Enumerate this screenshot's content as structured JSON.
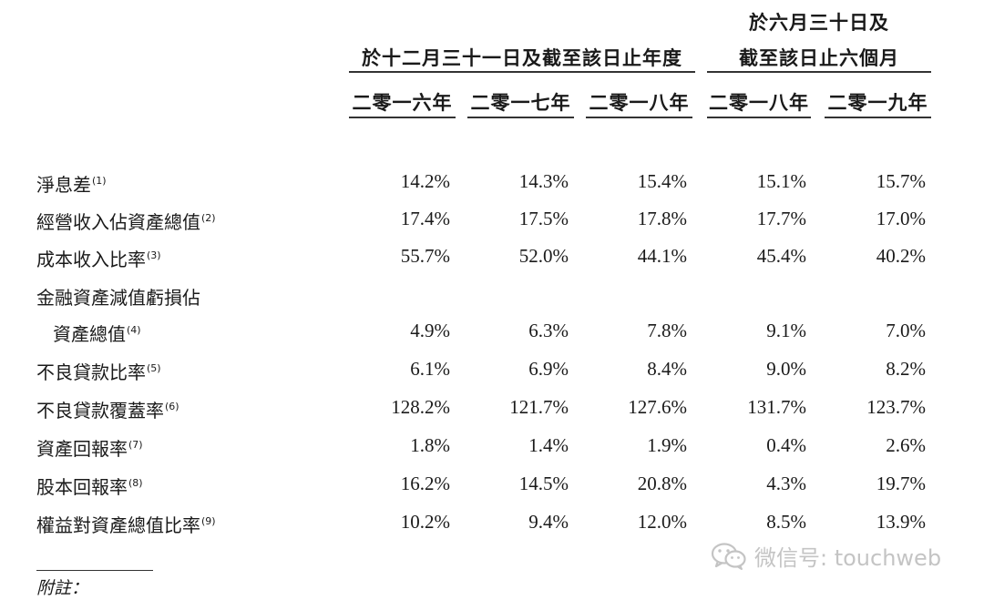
{
  "header": {
    "group_fy": "於十二月三十一日及截至該日止年度",
    "group_h1_line1": "於六月三十日及",
    "group_h1_line2": "截至該日止六個月",
    "columns": [
      "二零一六年",
      "二零一七年",
      "二零一八年",
      "二零一八年",
      "二零一九年"
    ]
  },
  "rows": [
    {
      "label": "淨息差",
      "note": "(1)",
      "values": [
        "14.2%",
        "14.3%",
        "15.4%",
        "15.1%",
        "15.7%"
      ]
    },
    {
      "label": "經營收入佔資產總值",
      "note": "(2)",
      "values": [
        "17.4%",
        "17.5%",
        "17.8%",
        "17.7%",
        "17.0%"
      ]
    },
    {
      "label": "成本收入比率",
      "note": "(3)",
      "values": [
        "55.7%",
        "52.0%",
        "44.1%",
        "45.4%",
        "40.2%"
      ]
    },
    {
      "label": "金融資產減值虧損佔",
      "note": "",
      "values": []
    },
    {
      "label": "資產總值",
      "note": "(4)",
      "values": [
        "4.9%",
        "6.3%",
        "7.8%",
        "9.1%",
        "7.0%"
      ]
    },
    {
      "label": "不良貸款比率",
      "note": "(5)",
      "values": [
        "6.1%",
        "6.9%",
        "8.4%",
        "9.0%",
        "8.2%"
      ]
    },
    {
      "label": "不良貸款覆蓋率",
      "note": "(6)",
      "values": [
        "128.2%",
        "121.7%",
        "127.6%",
        "131.7%",
        "123.7%"
      ]
    },
    {
      "label": "資產回報率",
      "note": "(7)",
      "values": [
        "1.8%",
        "1.4%",
        "1.9%",
        "0.4%",
        "2.6%"
      ]
    },
    {
      "label": "股本回報率",
      "note": "(8)",
      "values": [
        "16.2%",
        "14.5%",
        "20.8%",
        "4.3%",
        "19.7%"
      ]
    },
    {
      "label": "權益對資產總值比率",
      "note": "(9)",
      "values": [
        "10.2%",
        "9.4%",
        "12.0%",
        "8.5%",
        "13.9%"
      ]
    }
  ],
  "footer": {
    "notes_label": "附註："
  },
  "watermark": {
    "icon": "wechat-icon",
    "text": "微信号: touchweb"
  }
}
